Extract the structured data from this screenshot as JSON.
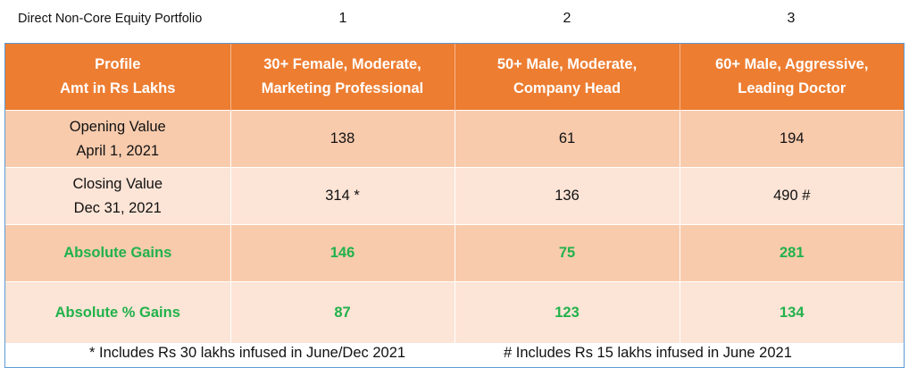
{
  "top": {
    "title": "Direct Non-Core Equity Portfolio",
    "numbers": [
      "1",
      "2",
      "3"
    ]
  },
  "header": {
    "col0_line1": "Profile",
    "col0_line2": "Amt in Rs Lakhs",
    "col1_line1": "30+ Female, Moderate,",
    "col1_line2": "Marketing Professional",
    "col2_line1": "50+ Male, Moderate,",
    "col2_line2": "Company Head",
    "col3_line1": "60+ Male, Aggressive,",
    "col3_line2": "Leading Doctor"
  },
  "rows": [
    {
      "label_line1": "Opening Value",
      "label_line2": "April 1, 2021",
      "values": [
        "138",
        "61",
        "194"
      ]
    },
    {
      "label_line1": "Closing Value",
      "label_line2": "Dec 31, 2021",
      "values": [
        "314 *",
        "136",
        "490 #"
      ]
    },
    {
      "label": "Absolute Gains",
      "values": [
        "146",
        "75",
        "281"
      ]
    },
    {
      "label": "Absolute % Gains",
      "values": [
        "87",
        "123",
        "134"
      ]
    }
  ],
  "footnotes": {
    "left": "* Includes Rs 30 lakhs infused in June/Dec 2021",
    "right": "# Includes Rs 15 lakhs infused in June 2021"
  },
  "colors": {
    "header_bg": "#ed7d31",
    "row_dark": "#f8cbad",
    "row_light": "#fce4d6",
    "gain_text": "#21b24b",
    "frame": "#5b9bd5"
  }
}
